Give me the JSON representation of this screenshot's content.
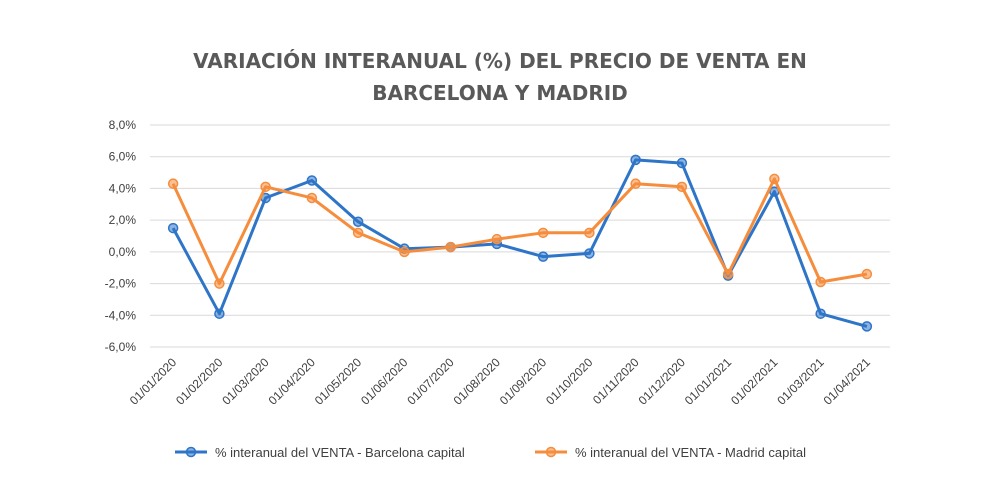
{
  "chart_data": {
    "type": "line",
    "title_lines": [
      "VARIACIÓN INTERANUAL (%) DEL PRECIO DE VENTA EN",
      "BARCELONA Y MADRID"
    ],
    "categories": [
      "01/01/2020",
      "01/02/2020",
      "01/03/2020",
      "01/04/2020",
      "01/05/2020",
      "01/06/2020",
      "01/07/2020",
      "01/08/2020",
      "01/09/2020",
      "01/10/2020",
      "01/11/2020",
      "01/12/2020",
      "01/01/2021",
      "01/02/2021",
      "01/03/2021",
      "01/04/2021"
    ],
    "yticks": [
      -6,
      -4,
      -2,
      0,
      2,
      4,
      6,
      8
    ],
    "ytick_labels": [
      "-6,0%",
      "-4,0%",
      "-2,0%",
      "0,0%",
      "2,0%",
      "4,0%",
      "6,0%",
      "8,0%"
    ],
    "ylim": [
      -6,
      8
    ],
    "grid": true,
    "legend_position": "bottom",
    "series": [
      {
        "name": "% interanual del VENTA - Barcelona capital",
        "color": "#2e75c8",
        "values": [
          1.5,
          -3.9,
          3.4,
          4.5,
          1.9,
          0.2,
          0.3,
          0.5,
          -0.3,
          -0.1,
          5.8,
          5.6,
          -1.5,
          3.8,
          -3.9,
          -4.7
        ]
      },
      {
        "name": "% interanual del VENTA - Madrid capital",
        "color": "#f58d3d",
        "values": [
          4.3,
          -2.0,
          4.1,
          3.4,
          1.2,
          0.0,
          0.3,
          0.8,
          1.2,
          1.2,
          4.3,
          4.1,
          -1.4,
          4.6,
          -1.9,
          -1.4
        ]
      }
    ]
  }
}
